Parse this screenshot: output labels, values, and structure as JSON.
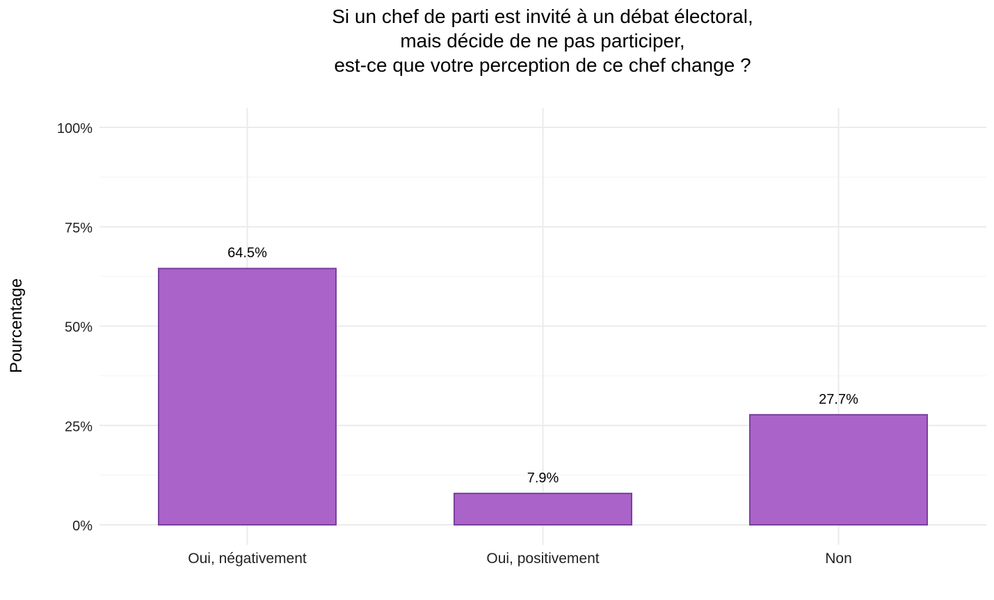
{
  "chart_data": {
    "type": "bar",
    "title_lines": [
      "Si un chef de parti est invité à un débat électoral,",
      "mais décide de ne pas participer,",
      "est-ce que votre perception de ce chef change ?"
    ],
    "xlabel": "",
    "ylabel": "Pourcentage",
    "categories": [
      "Oui, négativement",
      "Oui, positivement",
      "Non"
    ],
    "values": [
      64.5,
      7.9,
      27.7
    ],
    "data_labels": [
      "64.5%",
      "7.9%",
      "27.7%"
    ],
    "ylim": [
      0,
      100
    ],
    "yticks": [
      0,
      25,
      50,
      75,
      100
    ],
    "ytick_labels": [
      "0%",
      "25%",
      "50%",
      "75%",
      "100%"
    ],
    "grid": true,
    "legend": "none",
    "colors": {
      "bar_fill": "#a963c9",
      "bar_stroke": "#7b3fa0",
      "grid": "#ebebeb"
    }
  }
}
